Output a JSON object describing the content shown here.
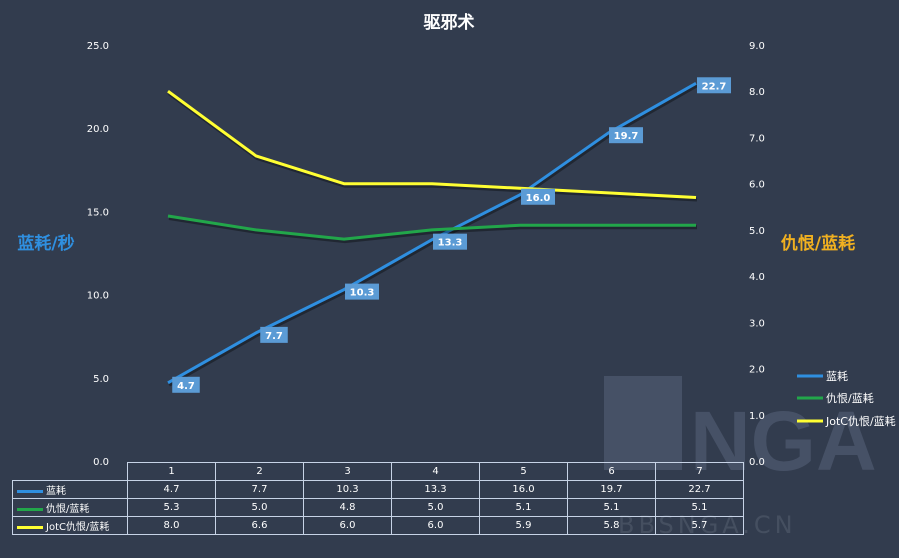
{
  "chart_data": {
    "type": "line",
    "title": "驱邪术",
    "categories": [
      "1",
      "2",
      "3",
      "4",
      "5",
      "6",
      "7"
    ],
    "y_left": {
      "label": "蓝耗/秒",
      "ticks": [
        "0.0",
        "5.0",
        "10.0",
        "15.0",
        "20.0",
        "25.0"
      ],
      "range": [
        0,
        25
      ]
    },
    "y_right": {
      "label": "仇恨/蓝耗",
      "ticks": [
        "0.0",
        "1.0",
        "2.0",
        "3.0",
        "4.0",
        "5.0",
        "6.0",
        "7.0",
        "8.0",
        "9.0"
      ],
      "range": [
        0,
        9
      ]
    },
    "series": [
      {
        "name": "蓝耗",
        "axis": "left",
        "color": "#2f8fe0",
        "values": [
          4.7,
          7.7,
          10.3,
          13.3,
          16.0,
          19.7,
          22.7
        ],
        "labels": [
          "4.7",
          "7.7",
          "10.3",
          "13.3",
          "16.0",
          "19.7",
          "22.7"
        ]
      },
      {
        "name": "仇恨/蓝耗",
        "axis": "right",
        "color": "#22a64a",
        "values": [
          5.3,
          5.0,
          4.8,
          5.0,
          5.1,
          5.1,
          5.1
        ],
        "labels": [
          "5.3",
          "5.0",
          "4.8",
          "5.0",
          "5.1",
          "5.1",
          "5.1"
        ]
      },
      {
        "name": "JotC仇恨/蓝耗",
        "axis": "right",
        "color": "#ffff33",
        "values": [
          8.0,
          6.6,
          6.0,
          6.0,
          5.9,
          5.8,
          5.7
        ],
        "labels": [
          "8.0",
          "6.6",
          "6.0",
          "6.0",
          "5.9",
          "5.8",
          "5.7"
        ]
      }
    ],
    "legend_position": "right",
    "grid": false,
    "data_table": true
  },
  "watermark": {
    "text": "BBSNGA.CN",
    "logo_text": "NGA"
  }
}
